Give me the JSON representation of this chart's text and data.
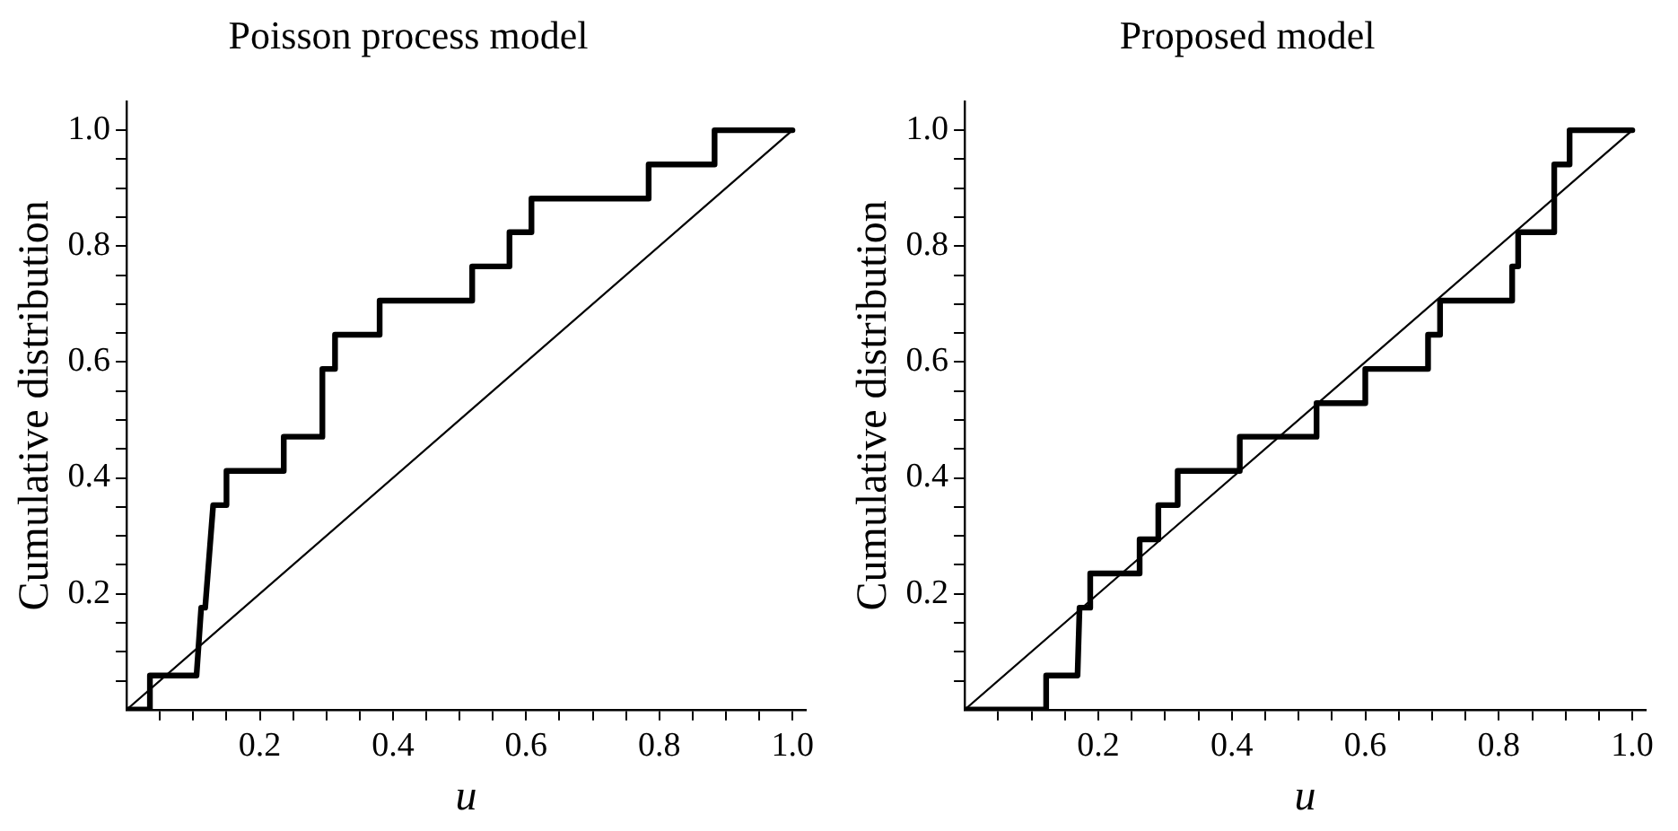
{
  "chart_data": [
    {
      "type": "line",
      "title": "Poisson process model",
      "xlabel": "u",
      "ylabel": "Cumulative distribution",
      "xlim": [
        0,
        1.02
      ],
      "ylim": [
        0,
        1.05
      ],
      "xticks": [
        {
          "value": 0.05,
          "label": null
        },
        {
          "value": 0.1,
          "label": null
        },
        {
          "value": 0.15,
          "label": null
        },
        0.2,
        {
          "value": 0.25,
          "label": null
        },
        {
          "value": 0.3,
          "label": null
        },
        {
          "value": 0.35,
          "label": null
        },
        0.4,
        {
          "value": 0.45,
          "label": null
        },
        {
          "value": 0.5,
          "label": null
        },
        {
          "value": 0.55,
          "label": null
        },
        0.6,
        {
          "value": 0.65,
          "label": null
        },
        {
          "value": 0.7,
          "label": null
        },
        {
          "value": 0.75,
          "label": null
        },
        0.8,
        {
          "value": 0.85,
          "label": null
        },
        {
          "value": 0.9,
          "label": null
        },
        {
          "value": 0.95,
          "label": null
        },
        {
          "value": 1,
          "label": "1.0"
        }
      ],
      "yticks": [
        {
          "value": 0.05,
          "label": null
        },
        {
          "value": 0.1,
          "label": null
        },
        {
          "value": 0.15,
          "label": null
        },
        0.2,
        {
          "value": 0.25,
          "label": null
        },
        {
          "value": 0.3,
          "label": null
        },
        {
          "value": 0.35,
          "label": null
        },
        0.4,
        {
          "value": 0.45,
          "label": null
        },
        {
          "value": 0.5,
          "label": null
        },
        {
          "value": 0.55,
          "label": null
        },
        0.6,
        {
          "value": 0.65,
          "label": null
        },
        {
          "value": 0.7,
          "label": null
        },
        {
          "value": 0.75,
          "label": null
        },
        0.8,
        {
          "value": 0.85,
          "label": null
        },
        {
          "value": 0.9,
          "label": null
        },
        {
          "value": 0.95,
          "label": null
        },
        {
          "value": 1,
          "label": "1.0"
        }
      ],
      "grid": false,
      "legend": false,
      "marker": "none",
      "line_style": "solid",
      "series": [
        {
          "color": "#000000",
          "x": [
            0,
            0.035,
            0.035,
            0.105,
            0.112,
            0.118,
            0.13,
            0.15,
            0.15,
            0.236,
            0.236,
            0.294,
            0.294,
            0.313,
            0.313,
            0.38,
            0.38,
            0.519,
            0.519,
            0.575,
            0.575,
            0.608,
            0.608,
            0.784,
            0.784,
            0.883,
            0.883,
            1
          ],
          "values": [
            0,
            0,
            0.059,
            0.059,
            0.176,
            0.176,
            0.353,
            0.353,
            0.412,
            0.412,
            0.471,
            0.471,
            0.588,
            0.588,
            0.647,
            0.647,
            0.706,
            0.706,
            0.765,
            0.765,
            0.824,
            0.824,
            0.882,
            0.882,
            0.941,
            0.941,
            1,
            1
          ]
        },
        {
          "color": "#000000",
          "x": [
            0,
            1
          ],
          "values": [
            0,
            1
          ]
        }
      ]
    },
    {
      "type": "line",
      "title": "Proposed model",
      "xlabel": "u",
      "ylabel": "Cumulative distribution",
      "xlim": [
        0,
        1.02
      ],
      "ylim": [
        0,
        1.05
      ],
      "xticks": [
        {
          "value": 0.05,
          "label": null
        },
        {
          "value": 0.1,
          "label": null
        },
        {
          "value": 0.15,
          "label": null
        },
        0.2,
        {
          "value": 0.25,
          "label": null
        },
        {
          "value": 0.3,
          "label": null
        },
        {
          "value": 0.35,
          "label": null
        },
        0.4,
        {
          "value": 0.45,
          "label": null
        },
        {
          "value": 0.5,
          "label": null
        },
        {
          "value": 0.55,
          "label": null
        },
        0.6,
        {
          "value": 0.65,
          "label": null
        },
        {
          "value": 0.7,
          "label": null
        },
        {
          "value": 0.75,
          "label": null
        },
        0.8,
        {
          "value": 0.85,
          "label": null
        },
        {
          "value": 0.9,
          "label": null
        },
        {
          "value": 0.95,
          "label": null
        },
        {
          "value": 1,
          "label": "1.0"
        }
      ],
      "yticks": [
        {
          "value": 0.05,
          "label": null
        },
        {
          "value": 0.1,
          "label": null
        },
        {
          "value": 0.15,
          "label": null
        },
        0.2,
        {
          "value": 0.25,
          "label": null
        },
        {
          "value": 0.3,
          "label": null
        },
        {
          "value": 0.35,
          "label": null
        },
        0.4,
        {
          "value": 0.45,
          "label": null
        },
        {
          "value": 0.5,
          "label": null
        },
        {
          "value": 0.55,
          "label": null
        },
        0.6,
        {
          "value": 0.65,
          "label": null
        },
        {
          "value": 0.7,
          "label": null
        },
        {
          "value": 0.75,
          "label": null
        },
        0.8,
        {
          "value": 0.85,
          "label": null
        },
        {
          "value": 0.9,
          "label": null
        },
        {
          "value": 0.95,
          "label": null
        },
        {
          "value": 1,
          "label": "1.0"
        }
      ],
      "grid": false,
      "legend": false,
      "marker": "none",
      "line_style": "solid",
      "series": [
        {
          "color": "#000000",
          "x": [
            0,
            0.122,
            0.122,
            0.169,
            0.172,
            0.188,
            0.188,
            0.262,
            0.262,
            0.29,
            0.29,
            0.319,
            0.319,
            0.412,
            0.412,
            0.527,
            0.527,
            0.6,
            0.6,
            0.694,
            0.694,
            0.712,
            0.712,
            0.82,
            0.82,
            0.829,
            0.829,
            0.883,
            0.883,
            0.906,
            0.906,
            1
          ],
          "values": [
            0,
            0,
            0.059,
            0.059,
            0.176,
            0.176,
            0.235,
            0.235,
            0.294,
            0.294,
            0.353,
            0.353,
            0.412,
            0.412,
            0.471,
            0.471,
            0.529,
            0.529,
            0.588,
            0.588,
            0.647,
            0.647,
            0.706,
            0.706,
            0.765,
            0.765,
            0.824,
            0.824,
            0.941,
            0.941,
            1,
            1
          ]
        },
        {
          "color": "#000000",
          "x": [
            0,
            1
          ],
          "values": [
            0,
            1
          ]
        }
      ]
    }
  ]
}
